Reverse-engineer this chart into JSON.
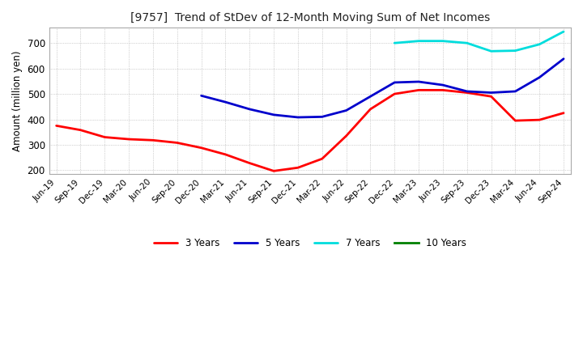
{
  "title": "[9757]  Trend of StDev of 12-Month Moving Sum of Net Incomes",
  "ylabel": "Amount (million yen)",
  "ylim": [
    185,
    760
  ],
  "yticks": [
    200,
    300,
    400,
    500,
    600,
    700
  ],
  "background_color": "#ffffff",
  "grid_color": "#aaaaaa",
  "series": {
    "3 Years": {
      "color": "#ff0000",
      "x": [
        "Jun-19",
        "Sep-19",
        "Dec-19",
        "Mar-20",
        "Jun-20",
        "Sep-20",
        "Dec-20",
        "Mar-21",
        "Jun-21",
        "Sep-21",
        "Dec-21",
        "Mar-22",
        "Jun-22",
        "Sep-22",
        "Dec-22",
        "Mar-23",
        "Jun-23",
        "Sep-23",
        "Dec-23",
        "Mar-24",
        "Jun-24",
        "Sep-24"
      ],
      "y": [
        375,
        358,
        330,
        322,
        318,
        308,
        288,
        262,
        228,
        197,
        210,
        245,
        335,
        440,
        500,
        515,
        515,
        505,
        490,
        395,
        398,
        425
      ]
    },
    "5 Years": {
      "color": "#0000cc",
      "x": [
        "Dec-20",
        "Mar-21",
        "Jun-21",
        "Sep-21",
        "Dec-21",
        "Mar-22",
        "Jun-22",
        "Sep-22",
        "Dec-22",
        "Mar-23",
        "Jun-23",
        "Sep-23",
        "Dec-23",
        "Mar-24",
        "Jun-24",
        "Sep-24"
      ],
      "y": [
        493,
        468,
        440,
        418,
        408,
        410,
        435,
        490,
        545,
        548,
        535,
        510,
        505,
        510,
        565,
        638
      ]
    },
    "7 Years": {
      "color": "#00dddd",
      "x": [
        "Dec-22",
        "Mar-23",
        "Jun-23",
        "Sep-23",
        "Dec-23",
        "Mar-24",
        "Jun-24",
        "Sep-24"
      ],
      "y": [
        700,
        708,
        708,
        700,
        668,
        670,
        695,
        745
      ]
    },
    "10 Years": {
      "color": "#008000",
      "x": [],
      "y": []
    }
  },
  "x_labels": [
    "Jun-19",
    "Sep-19",
    "Dec-19",
    "Mar-20",
    "Jun-20",
    "Sep-20",
    "Dec-20",
    "Mar-21",
    "Jun-21",
    "Sep-21",
    "Dec-21",
    "Mar-22",
    "Jun-22",
    "Sep-22",
    "Dec-22",
    "Mar-23",
    "Jun-23",
    "Sep-23",
    "Dec-23",
    "Mar-24",
    "Jun-24",
    "Sep-24"
  ]
}
